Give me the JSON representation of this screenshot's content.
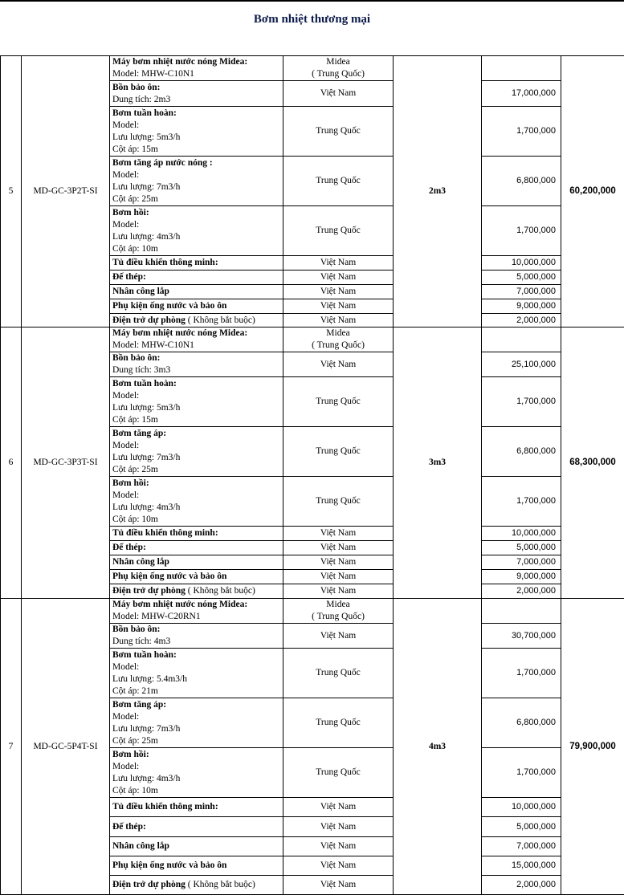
{
  "title": "Bơm nhiệt thương mại",
  "groups": [
    {
      "no": "5",
      "code": "MD-GC-3P2T-SI",
      "capacity": "2m3",
      "total": "60,200,000",
      "items": [
        {
          "name": "Máy bơm nhiệt nước nóng Midea:",
          "details": [
            "Model: MHW-C10N1"
          ],
          "origin": "Midea\n( Trung Quốc)",
          "price": ""
        },
        {
          "name": "Bồn bảo ôn:",
          "details": [
            "Dung tích: 2m3"
          ],
          "origin": "Việt Nam",
          "price": "17,000,000"
        },
        {
          "name": "Bơm tuần hoàn:",
          "details": [
            "Model:",
            "Lưu lượng: 5m3/h",
            "Cột áp: 15m"
          ],
          "origin": "Trung Quốc",
          "price": "1,700,000"
        },
        {
          "name": "Bơm tăng áp nước nóng :",
          "details": [
            "Model:",
            "Lưu lượng: 7m3/h",
            "Cột áp: 25m"
          ],
          "origin": "Trung Quốc",
          "price": "6,800,000"
        },
        {
          "name": "Bơm hồi:",
          "details": [
            "Model:",
            "Lưu lượng: 4m3/h",
            "Cột áp: 10m"
          ],
          "origin": "Trung Quốc",
          "price": "1,700,000"
        },
        {
          "name": "Tủ điều khiển thông minh:",
          "details": [],
          "origin": "Việt Nam",
          "price": "10,000,000"
        },
        {
          "name": "Đế thép:",
          "details": [],
          "origin": "Việt Nam",
          "price": "5,000,000"
        },
        {
          "name": "Nhân công lắp",
          "details": [],
          "origin": "Việt Nam",
          "price": "7,000,000"
        },
        {
          "name": "Phụ kiện ống nước và bảo ôn",
          "details": [],
          "origin": "Việt Nam",
          "price": "9,000,000"
        },
        {
          "name": "Điện trở dự phòng",
          "suffix": " ( Không bắt buộc)",
          "details": [],
          "origin": "Việt Nam",
          "price": "2,000,000"
        }
      ]
    },
    {
      "no": "6",
      "code": "MD-GC-3P3T-SI",
      "capacity": "3m3",
      "total": "68,300,000",
      "items": [
        {
          "name": "Máy bơm nhiệt nước nóng Midea:",
          "details": [
            "Model: MHW-C10N1"
          ],
          "origin": "Midea\n( Trung Quốc)",
          "price": ""
        },
        {
          "name": "Bồn bảo ôn:",
          "details": [
            "Dung tích: 3m3"
          ],
          "origin": "Việt Nam",
          "price": "25,100,000"
        },
        {
          "name": "Bơm tuần hoàn:",
          "details": [
            "Model:",
            "Lưu lượng: 5m3/h",
            "Cột áp: 15m"
          ],
          "origin": "Trung Quốc",
          "price": "1,700,000"
        },
        {
          "name": "Bơm tăng áp:",
          "details": [
            "Model:",
            "Lưu lượng: 7m3/h",
            "Cột áp: 25m"
          ],
          "origin": "Trung Quốc",
          "price": "6,800,000"
        },
        {
          "name": "Bơm hồi:",
          "details": [
            "Model:",
            "Lưu lượng: 4m3/h",
            "Cột áp: 10m"
          ],
          "origin": "Trung Quốc",
          "price": "1,700,000"
        },
        {
          "name": "Tủ điều khiển thông minh:",
          "details": [],
          "origin": "Việt Nam",
          "price": "10,000,000"
        },
        {
          "name": "Đế thép:",
          "details": [],
          "origin": "Việt Nam",
          "price": "5,000,000"
        },
        {
          "name": "Nhân công lắp",
          "details": [],
          "origin": "Việt Nam",
          "price": "7,000,000"
        },
        {
          "name": "Phụ kiện ống nước và bảo ôn",
          "details": [],
          "origin": "Việt Nam",
          "price": "9,000,000"
        },
        {
          "name": "Điện trở dự phòng",
          "suffix": " ( Không bắt buộc)",
          "details": [],
          "origin": "Việt Nam",
          "price": "2,000,000"
        }
      ]
    },
    {
      "no": "7",
      "code": "MD-GC-5P4T-SI",
      "capacity": "4m3",
      "total": "79,900,000",
      "items": [
        {
          "name": "Máy bơm nhiệt nước nóng Midea:",
          "details": [
            "Model: MHW-C20RN1"
          ],
          "origin": "Midea\n( Trung Quốc)",
          "price": ""
        },
        {
          "name": "Bồn bảo ôn:",
          "details": [
            "Dung tích: 4m3"
          ],
          "origin": "Việt Nam",
          "price": "30,700,000"
        },
        {
          "name": "Bơm tuần hoàn:",
          "details": [
            "Model:",
            "Lưu lượng: 5.4m3/h",
            "Cột áp: 21m"
          ],
          "origin": "Trung Quốc",
          "price": "1,700,000"
        },
        {
          "name": "Bơm tăng áp:",
          "details": [
            "Model:",
            "Lưu lượng: 7m3/h",
            "Cột áp: 25m"
          ],
          "origin": "Trung Quốc",
          "price": "6,800,000"
        },
        {
          "name": "Bơm hồi:",
          "details": [
            "Model:",
            "Lưu lượng: 4m3/h",
            "Cột áp: 10m"
          ],
          "origin": "Trung Quốc",
          "price": "1,700,000"
        },
        {
          "name": "Tủ điều khiển thông minh:",
          "details": [],
          "origin": "Việt Nam",
          "price": "10,000,000"
        },
        {
          "name": "Đế thép:",
          "details": [],
          "origin": "Việt Nam",
          "price": "5,000,000"
        },
        {
          "name": "Nhân công lắp",
          "details": [],
          "origin": "Việt Nam",
          "price": "7,000,000"
        },
        {
          "name": "Phụ kiện ống nước và bảo ôn",
          "details": [],
          "origin": "Việt Nam",
          "price": "15,000,000"
        },
        {
          "name": "Điện trở dự phòng",
          "suffix": " ( Không bắt buộc)",
          "details": [],
          "origin": "Việt Nam",
          "price": "2,000,000"
        }
      ]
    }
  ]
}
